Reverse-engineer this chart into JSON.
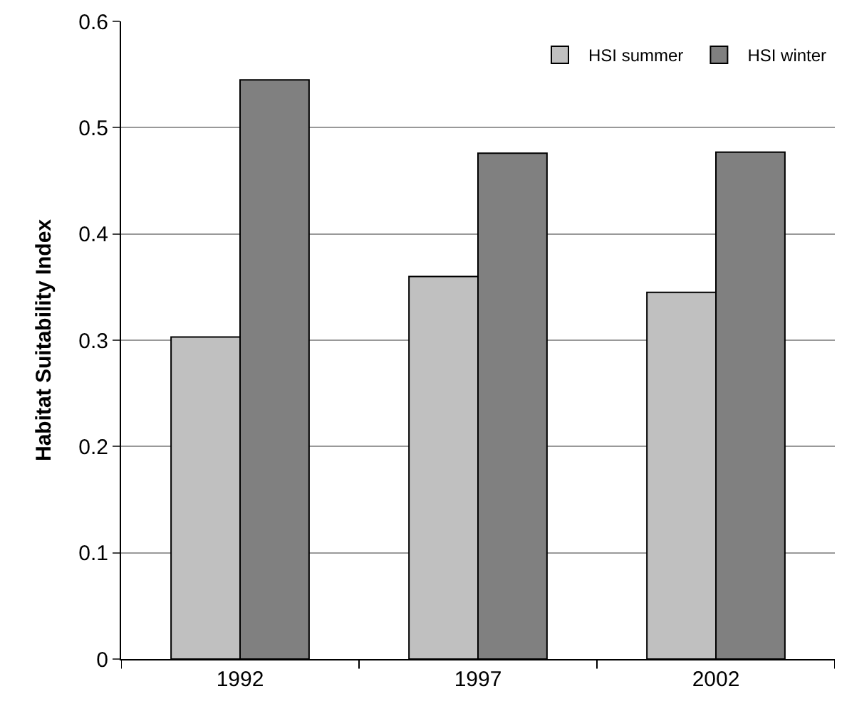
{
  "chart_data": {
    "type": "bar",
    "ylabel": "Habitat Suitability Index",
    "categories": [
      "1992",
      "1997",
      "2002"
    ],
    "series": [
      {
        "name": "HSI summer",
        "color": "#c0c0c0",
        "values": [
          0.303,
          0.36,
          0.345
        ]
      },
      {
        "name": "HSI winter",
        "color": "#808080",
        "values": [
          0.545,
          0.476,
          0.477
        ]
      }
    ],
    "ylim": [
      0,
      0.6
    ],
    "yticks": [
      0,
      0.1,
      0.2,
      0.3,
      0.4,
      0.5,
      0.6
    ],
    "grid": "y",
    "legend": "top right"
  }
}
